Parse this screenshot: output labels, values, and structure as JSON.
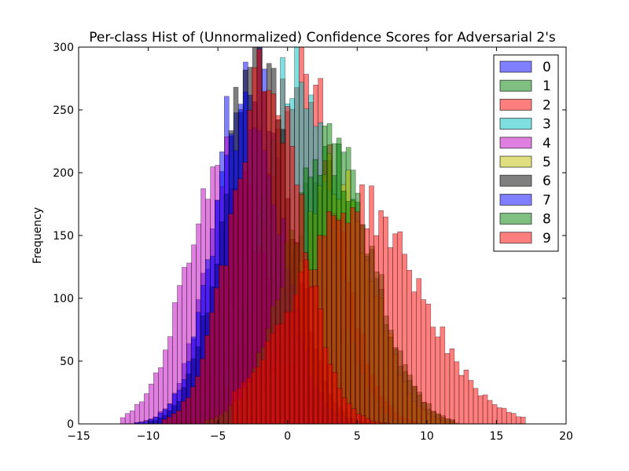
{
  "chart_data": {
    "type": "histogram",
    "title": "Per-class Hist of (Unnormalized) Confidence Scores for Adversarial 2's",
    "xlabel": "",
    "ylabel": "Frequency",
    "xlim": [
      -15,
      20
    ],
    "ylim": [
      0,
      300
    ],
    "xticks": [
      -15,
      -10,
      -5,
      0,
      5,
      10,
      15,
      20
    ],
    "yticks": [
      0,
      50,
      100,
      150,
      200,
      250,
      300
    ],
    "grid": false,
    "legend_position": "top-right",
    "bar_alpha": 0.5,
    "series": [
      {
        "name": "0",
        "color": "#0000ff",
        "mean": -2.8,
        "std": 2.4,
        "peak": 290,
        "range": [
          -11,
          6
        ]
      },
      {
        "name": "1",
        "color": "#008000",
        "mean": 3.2,
        "std": 3.0,
        "peak": 215,
        "range": [
          -6,
          12
        ]
      },
      {
        "name": "2",
        "color": "#ff0000",
        "mean": 1.0,
        "std": 2.6,
        "peak": 285,
        "range": [
          -8,
          9
        ]
      },
      {
        "name": "3",
        "color": "#00bfbf",
        "mean": 0.5,
        "std": 2.5,
        "peak": 285,
        "range": [
          -8,
          9
        ]
      },
      {
        "name": "4",
        "color": "#bf00bf",
        "mean": -4.5,
        "std": 2.7,
        "peak": 215,
        "range": [
          -12,
          5
        ]
      },
      {
        "name": "5",
        "color": "#bfbf00",
        "mean": 3.5,
        "std": 2.6,
        "peak": 200,
        "range": [
          -5,
          12
        ]
      },
      {
        "name": "6",
        "color": "#000000",
        "mean": -2.2,
        "std": 2.4,
        "peak": 295,
        "range": [
          -10,
          6
        ]
      },
      {
        "name": "7",
        "color": "#0000ff",
        "mean": -2.8,
        "std": 2.4,
        "peak": 255,
        "range": [
          -11,
          6
        ]
      },
      {
        "name": "8",
        "color": "#008000",
        "mean": 3.0,
        "std": 3.0,
        "peak": 220,
        "range": [
          -6,
          12
        ]
      },
      {
        "name": "9",
        "color": "#ff0000",
        "mean": 5.0,
        "std": 4.5,
        "peak": 175,
        "range": [
          -4,
          17
        ]
      },
      {
        "name": "",
        "color": "#ff0000",
        "mean": -1.5,
        "std": 2.5,
        "peak": 280,
        "range": [
          -9,
          7
        ]
      }
    ]
  }
}
